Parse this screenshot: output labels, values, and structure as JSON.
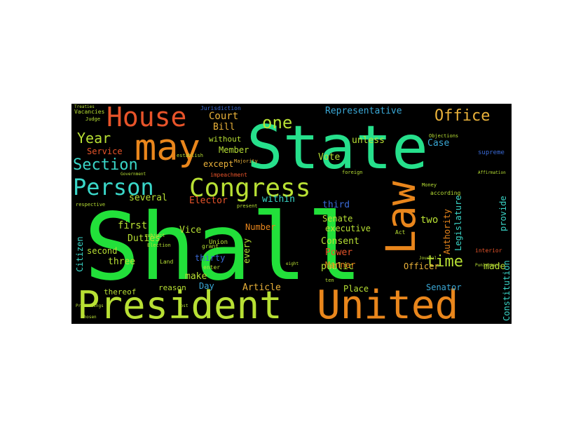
{
  "word_cloud": {
    "words": [
      {
        "text": "Shall",
        "color": "#22e03a"
      },
      {
        "text": "State",
        "color": "#26e08c"
      },
      {
        "text": "United",
        "color": "#e9861c"
      },
      {
        "text": "President",
        "color": "#b8e034"
      },
      {
        "text": "Congress",
        "color": "#b8e034"
      },
      {
        "text": "may",
        "color": "#e9861c"
      },
      {
        "text": "House",
        "color": "#e8542a"
      },
      {
        "text": "Law",
        "color": "#e9861c"
      },
      {
        "text": "Person",
        "color": "#3ad6c8"
      },
      {
        "text": "Section",
        "color": "#3ad6c8"
      },
      {
        "text": "Year",
        "color": "#b8e034"
      },
      {
        "text": "one",
        "color": "#b8e034"
      },
      {
        "text": "Office",
        "color": "#e9b13a"
      },
      {
        "text": "time",
        "color": "#b8e034"
      },
      {
        "text": "Representative",
        "color": "#3aa8d6"
      },
      {
        "text": "Court",
        "color": "#e9b13a"
      },
      {
        "text": "Bill",
        "color": "#e9b13a"
      },
      {
        "text": "Member",
        "color": "#b8e034"
      },
      {
        "text": "Service",
        "color": "#e8542a"
      },
      {
        "text": "without",
        "color": "#b8e034"
      },
      {
        "text": "except",
        "color": "#e9b13a"
      },
      {
        "text": "Vote",
        "color": "#b8e034"
      },
      {
        "text": "Case",
        "color": "#3aa8d6"
      },
      {
        "text": "unless",
        "color": "#b8e034"
      },
      {
        "text": "Elector",
        "color": "#e8542a"
      },
      {
        "text": "within",
        "color": "#3ad6c8"
      },
      {
        "text": "third",
        "color": "#3a6ad6"
      },
      {
        "text": "several",
        "color": "#b8e034"
      },
      {
        "text": "Senate",
        "color": "#b8e034"
      },
      {
        "text": "executive",
        "color": "#b8e034"
      },
      {
        "text": "first",
        "color": "#b8e034"
      },
      {
        "text": "Duties",
        "color": "#b8e034"
      },
      {
        "text": "Vice",
        "color": "#b8e034"
      },
      {
        "text": "thirty",
        "color": "#3a6ad6"
      },
      {
        "text": "Number",
        "color": "#e9861c"
      },
      {
        "text": "Consent",
        "color": "#b8e034"
      },
      {
        "text": "Power",
        "color": "#e8542a"
      },
      {
        "text": "public",
        "color": "#b8e034"
      },
      {
        "text": "two",
        "color": "#b8e034"
      },
      {
        "text": "Legislature",
        "color": "#3ad6c8"
      },
      {
        "text": "provide",
        "color": "#3ad6c8"
      },
      {
        "text": "Authority",
        "color": "#e9861c"
      },
      {
        "text": "Citizen",
        "color": "#3ad6c8"
      },
      {
        "text": "second",
        "color": "#b8e034"
      },
      {
        "text": "three",
        "color": "#b8e034"
      },
      {
        "text": "make",
        "color": "#b8e034"
      },
      {
        "text": "every",
        "color": "#b8e034"
      },
      {
        "text": "Manner",
        "color": "#e9861c"
      },
      {
        "text": "Officer",
        "color": "#e9b13a"
      },
      {
        "text": "made",
        "color": "#b8e034"
      },
      {
        "text": "Constitution",
        "color": "#3ad6c8"
      },
      {
        "text": "Day",
        "color": "#3aa8d6"
      },
      {
        "text": "Article",
        "color": "#e9b13a"
      },
      {
        "text": "Place",
        "color": "#b8e034"
      },
      {
        "text": "Senator",
        "color": "#3aa8d6"
      },
      {
        "text": "thereof",
        "color": "#b8e034"
      },
      {
        "text": "reason",
        "color": "#b8e034"
      },
      {
        "text": "Jurisdiction",
        "color": "#3a6ad6"
      },
      {
        "text": "Vacancies",
        "color": "#b8e034"
      },
      {
        "text": "Judge",
        "color": "#b8e034"
      },
      {
        "text": "establish",
        "color": "#b8e034"
      },
      {
        "text": "impeachment",
        "color": "#e8542a"
      },
      {
        "text": "Majority",
        "color": "#e9b13a"
      },
      {
        "text": "respective",
        "color": "#b8e034"
      },
      {
        "text": "present",
        "color": "#b8e034"
      },
      {
        "text": "subject",
        "color": "#b8e034"
      },
      {
        "text": "Election",
        "color": "#b8e034"
      },
      {
        "text": "Union",
        "color": "#b8e034"
      },
      {
        "text": "grant",
        "color": "#b8e034"
      },
      {
        "text": "Land",
        "color": "#b8e034"
      },
      {
        "text": "enter",
        "color": "#b8e034"
      },
      {
        "text": "supreme",
        "color": "#3a6ad6"
      },
      {
        "text": "according",
        "color": "#b8e034"
      },
      {
        "text": "interior",
        "color": "#e8542a"
      },
      {
        "text": "Act",
        "color": "#b8e034"
      },
      {
        "text": "foreign",
        "color": "#b8e034"
      },
      {
        "text": "Money",
        "color": "#b8e034"
      },
      {
        "text": "Objections",
        "color": "#b8e034"
      },
      {
        "text": "Affirmation",
        "color": "#b8e034"
      },
      {
        "text": "Treaties",
        "color": "#b8e034"
      },
      {
        "text": "Government",
        "color": "#b8e034"
      },
      {
        "text": "Proceedings",
        "color": "#b8e034"
      },
      {
        "text": "chosen",
        "color": "#b8e034"
      },
      {
        "text": "post",
        "color": "#b8e034"
      },
      {
        "text": "ten",
        "color": "#b8e034"
      },
      {
        "text": "eight",
        "color": "#b8e034"
      },
      {
        "text": "Journal",
        "color": "#b8e034"
      },
      {
        "text": "Punishment",
        "color": "#b8e034"
      }
    ]
  }
}
